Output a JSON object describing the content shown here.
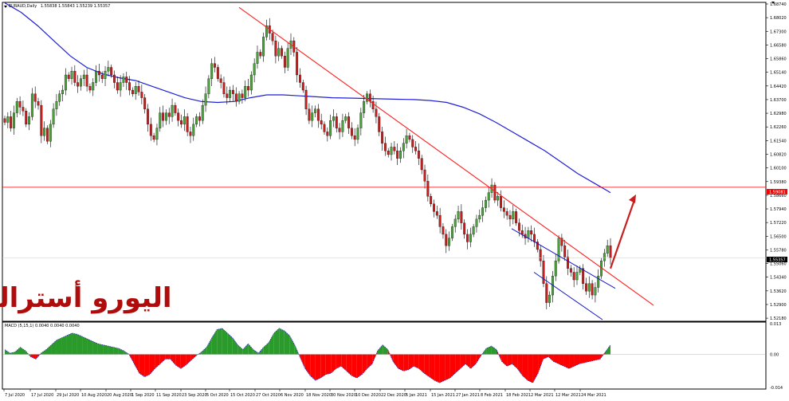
{
  "chart_data": [
    {
      "type": "candlestick",
      "header": "EURAUD,Daily",
      "header_values": "1.55838 1.55843 1.55239 1.55357",
      "overlay_text": "اليورو أسترالي",
      "ylim": [
        1.521,
        1.6874
      ],
      "y_ticks": [
        "1.68740",
        "1.68020",
        "1.67300",
        "1.66580",
        "1.65860",
        "1.65140",
        "1.64420",
        "1.63700",
        "1.62980",
        "1.62260",
        "1.61540",
        "1.60820",
        "1.60100",
        "1.59380",
        "1.58660",
        "1.57940",
        "1.57220",
        "1.56500",
        "1.55780",
        "1.55060",
        "1.54340",
        "1.53620",
        "1.52900",
        "1.52180"
      ],
      "x_ticks": [
        "7 Jul 2020",
        "17 Jul 2020",
        "29 Jul 2020",
        "10 Aug 2020",
        "20 Aug 2020",
        "1 Sep 2020",
        "11 Sep 2020",
        "23 Sep 2020",
        "5 Oct 2020",
        "15 Oct 2020",
        "27 Oct 2020",
        "6 Nov 2020",
        "18 Nov 2020",
        "30 Nov 2020",
        "10 Dec 2020",
        "22 Dec 2020",
        "5 Jan 2021",
        "15 Jan 2021",
        "27 Jan 2021",
        "8 Feb 2021",
        "18 Feb 2021",
        "2 Mar 2021",
        "12 Mar 2021",
        "24 Mar 2021"
      ],
      "horizontal_level": 1.59081,
      "horizontal_level_label": "1.59081",
      "current_price_label": "1.55357",
      "colors": {
        "bull": "#4aa33a",
        "bear": "#c81e1e",
        "ma": "#1f1fd6",
        "trend": "#ff2020",
        "channel": "#1515c8",
        "level": "#ff0000",
        "arrow": "#c81e1e",
        "overlay_text": "#b00c0c"
      },
      "close_series": [
        1.625,
        1.628,
        1.622,
        1.63,
        1.636,
        1.633,
        1.631,
        1.624,
        1.628,
        1.64,
        1.636,
        1.634,
        1.618,
        1.622,
        1.615,
        1.624,
        1.632,
        1.636,
        1.64,
        1.642,
        1.65,
        1.648,
        1.652,
        1.646,
        1.644,
        1.648,
        1.65,
        1.644,
        1.642,
        1.646,
        1.652,
        1.65,
        1.648,
        1.652,
        1.654,
        1.65,
        1.646,
        1.642,
        1.646,
        1.649,
        1.646,
        1.642,
        1.64,
        1.644,
        1.641,
        1.638,
        1.632,
        1.624,
        1.618,
        1.616,
        1.622,
        1.63,
        1.626,
        1.63,
        1.628,
        1.634,
        1.63,
        1.626,
        1.624,
        1.628,
        1.62,
        1.618,
        1.624,
        1.628,
        1.626,
        1.634,
        1.64,
        1.648,
        1.656,
        1.654,
        1.648,
        1.646,
        1.64,
        1.638,
        1.642,
        1.64,
        1.636,
        1.64,
        1.638,
        1.644,
        1.642,
        1.65,
        1.656,
        1.662,
        1.66,
        1.67,
        1.676,
        1.672,
        1.668,
        1.66,
        1.664,
        1.66,
        1.654,
        1.664,
        1.668,
        1.662,
        1.65,
        1.646,
        1.642,
        1.632,
        1.626,
        1.63,
        1.632,
        1.626,
        1.624,
        1.62,
        1.618,
        1.626,
        1.628,
        1.622,
        1.62,
        1.626,
        1.628,
        1.622,
        1.618,
        1.616,
        1.622,
        1.63,
        1.636,
        1.64,
        1.636,
        1.632,
        1.628,
        1.62,
        1.614,
        1.61,
        1.608,
        1.612,
        1.61,
        1.606,
        1.61,
        1.614,
        1.618,
        1.616,
        1.612,
        1.61,
        1.606,
        1.6,
        1.594,
        1.586,
        1.582,
        1.578,
        1.576,
        1.57,
        1.566,
        1.56,
        1.564,
        1.57,
        1.574,
        1.578,
        1.572,
        1.566,
        1.562,
        1.566,
        1.57,
        1.574,
        1.576,
        1.58,
        1.584,
        1.588,
        1.592,
        1.584,
        1.586,
        1.58,
        1.578,
        1.576,
        1.574,
        1.578,
        1.572,
        1.568,
        1.566,
        1.564,
        1.568,
        1.566,
        1.562,
        1.558,
        1.552,
        1.54,
        1.53,
        1.534,
        1.544,
        1.552,
        1.564,
        1.56,
        1.554,
        1.548,
        1.546,
        1.542,
        1.546,
        1.548,
        1.54,
        1.536,
        1.54,
        1.534,
        1.538,
        1.544,
        1.552,
        1.556,
        1.56,
        1.5536
      ],
      "ma_series": [
        1.688,
        1.683,
        1.676,
        1.668,
        1.66,
        1.654,
        1.6505,
        1.6485,
        1.647,
        1.644,
        1.641,
        1.638,
        1.636,
        1.6355,
        1.636,
        1.638,
        1.6395,
        1.6395,
        1.639,
        1.6385,
        1.638,
        1.6378,
        1.6376,
        1.6374,
        1.6372,
        1.637,
        1.6365,
        1.6355,
        1.633,
        1.6295,
        1.625,
        1.62,
        1.615,
        1.61,
        1.604,
        1.598,
        1.593,
        1.588
      ],
      "trendline": {
        "from": {
          "x": "15 Oct 2020",
          "y": 1.6856
        },
        "to": {
          "x": "24 Mar 2021",
          "y": 1.5286
        }
      },
      "channel_upper": {
        "from": {
          "x": "18 Feb 2021",
          "y": 1.569
        },
        "to": {
          "x": "24 Mar 2021",
          "y": 1.5375
        }
      },
      "channel_lower": {
        "from": {
          "x": "2 Mar 2021",
          "y": 1.546
        },
        "to": {
          "x": "24 Mar 2021",
          "y": 1.521
        }
      },
      "arrow": {
        "from": {
          "x": "24 Mar 2021",
          "y": 1.548
        },
        "to": {
          "x": "24 Mar 2021",
          "y": 1.587
        }
      }
    },
    {
      "type": "histogram",
      "header": "MACD (5,15,1) 0.0040 0.0040 0.0040",
      "ylim": [
        -0.014,
        0.013
      ],
      "y_ticks": [
        "0.013",
        "0.00",
        "-0.014"
      ],
      "colors": {
        "positive": "#2a9a2a",
        "negative": "#ff0000",
        "signal": "#3333aa"
      },
      "values": [
        0.002,
        0.0005,
        0.001,
        0.003,
        0.0015,
        -0.001,
        -0.002,
        0.0005,
        0.002,
        0.004,
        0.006,
        0.007,
        0.008,
        0.009,
        0.0085,
        0.0075,
        0.0065,
        0.0055,
        0.0045,
        0.004,
        0.0035,
        0.003,
        0.0025,
        0.0015,
        0.0,
        -0.004,
        -0.008,
        -0.0095,
        -0.0085,
        -0.006,
        -0.004,
        -0.002,
        -0.002,
        -0.0045,
        -0.006,
        -0.0045,
        -0.0025,
        -0.0005,
        0.001,
        0.003,
        0.007,
        0.0105,
        0.011,
        0.009,
        0.007,
        0.004,
        0.002,
        0.0045,
        0.002,
        0.0005,
        0.003,
        0.005,
        0.009,
        0.011,
        0.01,
        0.008,
        0.004,
        -0.001,
        -0.006,
        -0.009,
        -0.011,
        -0.01,
        -0.0085,
        -0.008,
        -0.006,
        -0.005,
        -0.007,
        -0.009,
        -0.01,
        -0.0085,
        -0.006,
        -0.004,
        0.0015,
        0.004,
        0.002,
        -0.003,
        -0.006,
        -0.007,
        -0.0065,
        -0.005,
        -0.006,
        -0.008,
        -0.0095,
        -0.011,
        -0.012,
        -0.011,
        -0.01,
        -0.008,
        -0.006,
        -0.004,
        -0.006,
        -0.004,
        -0.0005,
        0.0025,
        0.0035,
        0.002,
        -0.003,
        -0.005,
        -0.004,
        -0.006,
        -0.009,
        -0.011,
        -0.012,
        -0.008,
        -0.002,
        -0.001,
        -0.003,
        -0.004,
        -0.005,
        -0.006,
        -0.005,
        -0.004,
        -0.0035,
        -0.003,
        -0.0025,
        -0.002,
        0.001,
        0.004
      ]
    }
  ]
}
